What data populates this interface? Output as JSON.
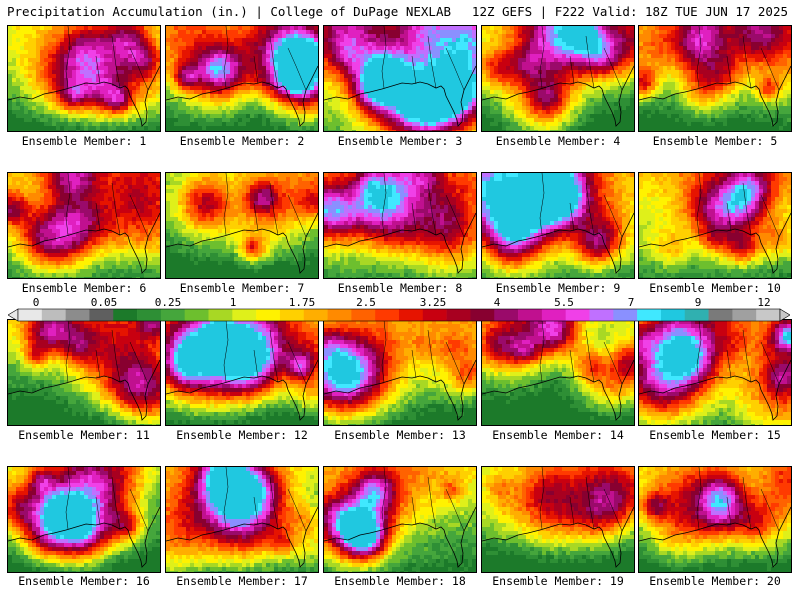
{
  "header": {
    "title_left": "Precipitation Accumulation (in.) | College of DuPage NEXLAB",
    "title_right": "12Z GEFS | F222 Valid: 18Z TUE JUN 17 2025"
  },
  "panels": [
    {
      "label": "Ensemble Member: 1",
      "seed": 11,
      "wet": 0.45
    },
    {
      "label": "Ensemble Member: 2",
      "seed": 23,
      "wet": 0.5
    },
    {
      "label": "Ensemble Member: 3",
      "seed": 37,
      "wet": 0.78
    },
    {
      "label": "Ensemble Member: 4",
      "seed": 41,
      "wet": 0.45
    },
    {
      "label": "Ensemble Member: 5",
      "seed": 53,
      "wet": 0.5
    },
    {
      "label": "Ensemble Member: 6",
      "seed": 67,
      "wet": 0.62
    },
    {
      "label": "Ensemble Member: 7",
      "seed": 71,
      "wet": 0.4
    },
    {
      "label": "Ensemble Member: 8",
      "seed": 83,
      "wet": 0.7
    },
    {
      "label": "Ensemble Member: 9",
      "seed": 97,
      "wet": 0.66
    },
    {
      "label": "Ensemble Member: 10",
      "seed": 101,
      "wet": 0.65
    },
    {
      "label": "Ensemble Member: 11",
      "seed": 113,
      "wet": 0.42
    },
    {
      "label": "Ensemble Member: 12",
      "seed": 127,
      "wet": 0.4
    },
    {
      "label": "Ensemble Member: 13",
      "seed": 131,
      "wet": 0.45
    },
    {
      "label": "Ensemble Member: 14",
      "seed": 149,
      "wet": 0.4
    },
    {
      "label": "Ensemble Member: 15",
      "seed": 151,
      "wet": 0.66
    },
    {
      "label": "Ensemble Member: 16",
      "seed": 163,
      "wet": 0.44
    },
    {
      "label": "Ensemble Member: 17",
      "seed": 173,
      "wet": 0.42
    },
    {
      "label": "Ensemble Member: 18",
      "seed": 181,
      "wet": 0.6
    },
    {
      "label": "Ensemble Member: 19",
      "seed": 191,
      "wet": 0.38
    },
    {
      "label": "Ensemble Member: 20",
      "seed": 197,
      "wet": 0.48
    }
  ],
  "colorbar": {
    "labels": [
      "0",
      "0.05",
      "0.25",
      "1",
      "1.75",
      "2.5",
      "3.25",
      "4",
      "5.5",
      "7",
      "9",
      "12"
    ],
    "colors": [
      "#e8e8e8",
      "#bdbdbd",
      "#8c8c8c",
      "#5f5f5f",
      "#1c7a2a",
      "#2e8f35",
      "#45a63c",
      "#6dbf2e",
      "#a8d824",
      "#dff01a",
      "#fff200",
      "#ffd000",
      "#ffae00",
      "#ff8a00",
      "#ff6200",
      "#ff3a00",
      "#e61400",
      "#c80010",
      "#a80020",
      "#880030",
      "#9a0a6a",
      "#c0108f",
      "#e020c0",
      "#f040e8",
      "#c070ff",
      "#8a90ff",
      "#40e8ff",
      "#20c8e0",
      "#30b0b0",
      "#7a7a7a",
      "#a0a0a0",
      "#c8c8c8"
    ]
  }
}
